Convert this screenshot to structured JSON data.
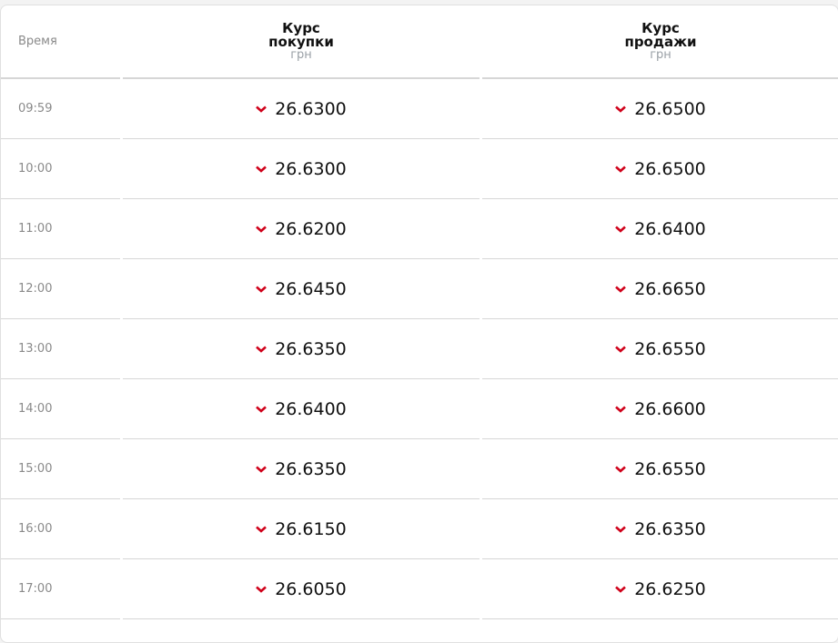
{
  "colors": {
    "down": "#d0021b"
  },
  "header": {
    "time": "Время",
    "buy": "Курс покупки",
    "sell": "Курс продажи",
    "unit": "грн"
  },
  "rows": [
    {
      "time": "09:59",
      "buy": "26.6300",
      "sell": "26.6500",
      "trend": "down"
    },
    {
      "time": "10:00",
      "buy": "26.6300",
      "sell": "26.6500",
      "trend": "down"
    },
    {
      "time": "11:00",
      "buy": "26.6200",
      "sell": "26.6400",
      "trend": "down"
    },
    {
      "time": "12:00",
      "buy": "26.6450",
      "sell": "26.6650",
      "trend": "down"
    },
    {
      "time": "13:00",
      "buy": "26.6350",
      "sell": "26.6550",
      "trend": "down"
    },
    {
      "time": "14:00",
      "buy": "26.6400",
      "sell": "26.6600",
      "trend": "down"
    },
    {
      "time": "15:00",
      "buy": "26.6350",
      "sell": "26.6550",
      "trend": "down"
    },
    {
      "time": "16:00",
      "buy": "26.6150",
      "sell": "26.6350",
      "trend": "down"
    },
    {
      "time": "17:00",
      "buy": "26.6050",
      "sell": "26.6250",
      "trend": "down"
    }
  ]
}
